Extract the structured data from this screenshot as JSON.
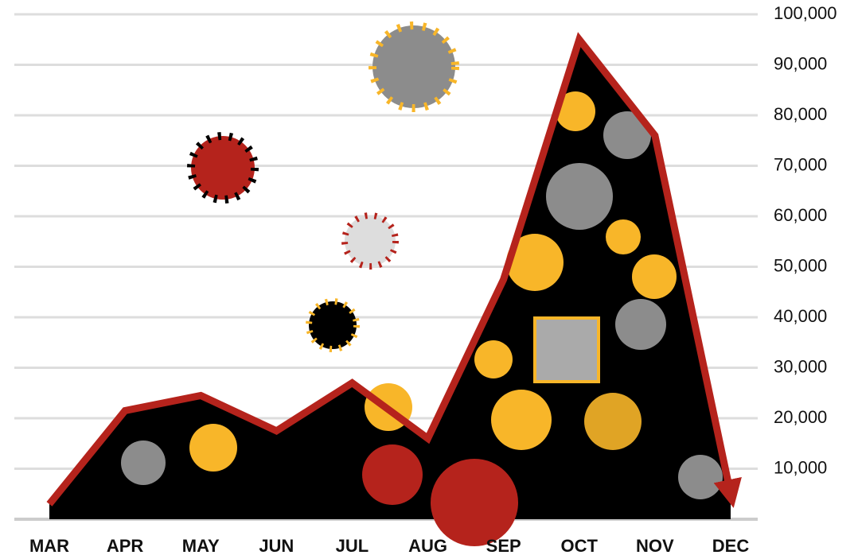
{
  "chart_data": {
    "type": "area",
    "categories": [
      "MAR",
      "APR",
      "MAY",
      "JUN",
      "JUL",
      "AUG",
      "SEP",
      "OCT",
      "NOV",
      "DEC"
    ],
    "values": [
      3000,
      21500,
      24500,
      17500,
      27000,
      16000,
      47500,
      95000,
      76000,
      5000
    ],
    "color": "#b5231c",
    "fill": "#000000",
    "ylim": [
      0,
      100000
    ],
    "yticks": [
      {
        "value": 10000,
        "label": "10,000"
      },
      {
        "value": 20000,
        "label": "20,000"
      },
      {
        "value": 30000,
        "label": "30,000"
      },
      {
        "value": 40000,
        "label": "40,000"
      },
      {
        "value": 50000,
        "label": "50,000"
      },
      {
        "value": 60000,
        "label": "60,000"
      },
      {
        "value": 70000,
        "label": "70,000"
      },
      {
        "value": 80000,
        "label": "80,000"
      },
      {
        "value": 90000,
        "label": "90,000"
      },
      {
        "value": 100000,
        "label": "100,000"
      }
    ],
    "grid": true
  }
}
